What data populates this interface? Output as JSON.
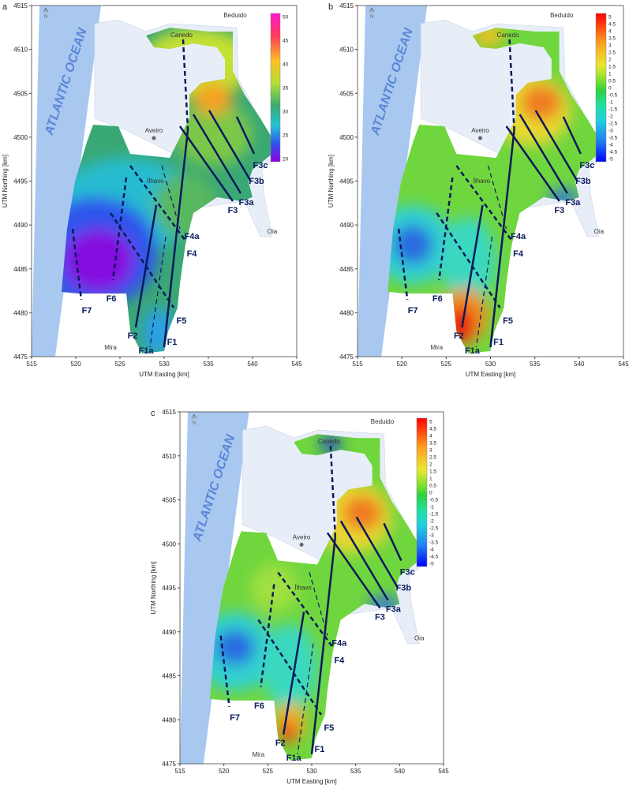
{
  "panels": [
    {
      "label": "a",
      "x_axis": {
        "title": "UTM Easting [km]",
        "ticks": [
          515,
          520,
          525,
          530,
          535,
          540,
          545
        ]
      },
      "y_axis": {
        "title": "UTM Northing [km]",
        "ticks": [
          4475,
          4480,
          4485,
          4490,
          4495,
          4500,
          4505,
          4510,
          4515
        ]
      },
      "colorbar": {
        "ticks": [
          50,
          45,
          40,
          35,
          30,
          25,
          20
        ]
      },
      "ocean_label": "ATLANTIC OCEAN",
      "north": "N",
      "places": [
        "Canedo",
        "Beduido",
        "Aveiro",
        "Ílhavo",
        "Oia",
        "Mira"
      ],
      "faults": [
        "F3c",
        "F3b",
        "F3a",
        "F3",
        "F4a",
        "F4",
        "F5",
        "F1",
        "F1a",
        "F2",
        "F6",
        "F7"
      ]
    },
    {
      "label": "b",
      "x_axis": {
        "title": "UTM Easting [km]",
        "ticks": [
          515,
          520,
          525,
          530,
          535,
          540,
          545
        ]
      },
      "y_axis": {
        "title": "UTM Northing [km]",
        "ticks": [
          4475,
          4480,
          4485,
          4490,
          4495,
          4500,
          4505,
          4510,
          4515
        ]
      },
      "colorbar": {
        "ticks": [
          5,
          4.5,
          4,
          3.5,
          3,
          2.5,
          2,
          1.5,
          1,
          0.5,
          0,
          -0.5,
          -1,
          -1.5,
          -2,
          -2.5,
          -3,
          -3.5,
          -4,
          -4.5,
          -5
        ]
      },
      "ocean_label": "ATLANTIC OCEAN",
      "north": "N",
      "places": [
        "Canedo",
        "Beduido",
        "Aveiro",
        "Ílhavo",
        "Oia",
        "Mira"
      ],
      "faults": [
        "F3c",
        "F3b",
        "F3a",
        "F3",
        "F4a",
        "F4",
        "F5",
        "F1",
        "F1a",
        "F2",
        "F6",
        "F7"
      ]
    },
    {
      "label": "c",
      "x_axis": {
        "title": "UTM Easting [km]",
        "ticks": [
          515,
          520,
          525,
          530,
          535,
          540,
          545
        ]
      },
      "y_axis": {
        "title": "UTM Northing [km]",
        "ticks": [
          4475,
          4480,
          4485,
          4490,
          4495,
          4500,
          4505,
          4510,
          4515
        ]
      },
      "colorbar": {
        "ticks": [
          5,
          4.5,
          4,
          3.5,
          3,
          2.5,
          2,
          1.5,
          1,
          0.5,
          0,
          -0.5,
          -1,
          -1.5,
          -2,
          -2.5,
          -3,
          -3.5,
          -4,
          -4.5,
          -5
        ]
      },
      "ocean_label": "ATLANTIC OCEAN",
      "north": "N",
      "places": [
        "Canedo",
        "Beduido",
        "Aveiro",
        "Ílhavo",
        "Oia",
        "Mira"
      ],
      "faults": [
        "F3c",
        "F3b",
        "F3a",
        "F3",
        "F4a",
        "F4",
        "F5",
        "F1",
        "F1a",
        "F2",
        "F6",
        "F7"
      ]
    }
  ]
}
